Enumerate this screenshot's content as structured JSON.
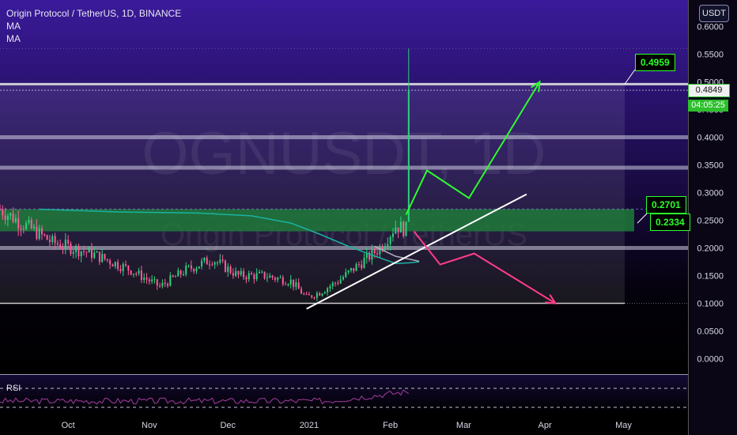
{
  "header": {
    "symbol_title": "Origin Protocol / TetherUS, 1D, BINANCE",
    "indicators": [
      "MA",
      "MA"
    ],
    "currency": "USDT"
  },
  "watermark": {
    "ticker": "OGNUSDT, 1D",
    "name": "Origin Protocol / TetherUS"
  },
  "price_axis": {
    "ticks": [
      "0.6000",
      "0.5500",
      "0.5000",
      "0.4500",
      "0.4000",
      "0.3500",
      "0.3000",
      "0.2500",
      "0.2000",
      "0.1500",
      "0.1000",
      "0.0500",
      "0.0000"
    ],
    "last_price_tag": "0.4849",
    "countdown_tag": "04:05:25"
  },
  "time_axis": {
    "labels": [
      "Oct",
      "Nov",
      "Dec",
      "2021",
      "Feb",
      "Mar",
      "Apr",
      "May"
    ]
  },
  "annotations": {
    "target_top": "0.4959",
    "level_mid": "0.2701",
    "level_low": "0.2334"
  },
  "rsi": {
    "label": "RSI"
  },
  "colors": {
    "background_top": "#3a1a9a",
    "background_bottom": "#000000",
    "up_candle": "#2cd37c",
    "down_candle": "#ff5a9a",
    "ma_line": "#19b3a0",
    "green_zone": "#1f7a3a",
    "bullish_path": "#2cff2c",
    "bearish_path": "#ff3d8a",
    "trendline": "#ffffff",
    "rsi_line": "#a53ca0"
  },
  "chart_data": {
    "type": "candlestick",
    "timeframe": "1D",
    "ylim": [
      -0.03,
      0.62
    ],
    "x_range": [
      "2020-09-05",
      "2021-05-25"
    ],
    "close_approx": [
      {
        "date": "2020-09-05",
        "close": 0.27
      },
      {
        "date": "2020-09-15",
        "close": 0.24
      },
      {
        "date": "2020-09-25",
        "close": 0.21
      },
      {
        "date": "2020-10-10",
        "close": 0.19
      },
      {
        "date": "2020-10-25",
        "close": 0.16
      },
      {
        "date": "2020-11-05",
        "close": 0.13
      },
      {
        "date": "2020-11-15",
        "close": 0.16
      },
      {
        "date": "2020-11-25",
        "close": 0.18
      },
      {
        "date": "2020-12-05",
        "close": 0.15
      },
      {
        "date": "2020-12-15",
        "close": 0.15
      },
      {
        "date": "2020-12-25",
        "close": 0.14
      },
      {
        "date": "2020-12-31",
        "close": 0.11
      },
      {
        "date": "2021-01-05",
        "close": 0.12
      },
      {
        "date": "2021-01-12",
        "close": 0.14
      },
      {
        "date": "2021-01-20",
        "close": 0.17
      },
      {
        "date": "2021-01-28",
        "close": 0.2
      },
      {
        "date": "2021-02-03",
        "close": 0.24
      },
      {
        "date": "2021-02-07",
        "close": 0.2334
      },
      {
        "date": "2021-02-08",
        "close": 0.4849
      }
    ],
    "spike_high": 0.56,
    "horizontal_levels": [
      0.4959,
      0.4849,
      0.4,
      0.345,
      0.2701,
      0.2334,
      0.2,
      0.1
    ],
    "support_zone": [
      0.23,
      0.27
    ],
    "trendline": [
      {
        "date": "2020-12-31",
        "value": 0.09
      },
      {
        "date": "2021-03-25",
        "value": 0.297
      }
    ],
    "bullish_projection": [
      {
        "date": "2021-02-07",
        "value": 0.26
      },
      {
        "date": "2021-02-15",
        "value": 0.34
      },
      {
        "date": "2021-03-03",
        "value": 0.29
      },
      {
        "date": "2021-03-30",
        "value": 0.5
      }
    ],
    "bearish_projection": [
      {
        "date": "2021-02-10",
        "value": 0.23
      },
      {
        "date": "2021-02-20",
        "value": 0.17
      },
      {
        "date": "2021-03-05",
        "value": 0.19
      },
      {
        "date": "2021-04-05",
        "value": 0.1
      }
    ]
  }
}
